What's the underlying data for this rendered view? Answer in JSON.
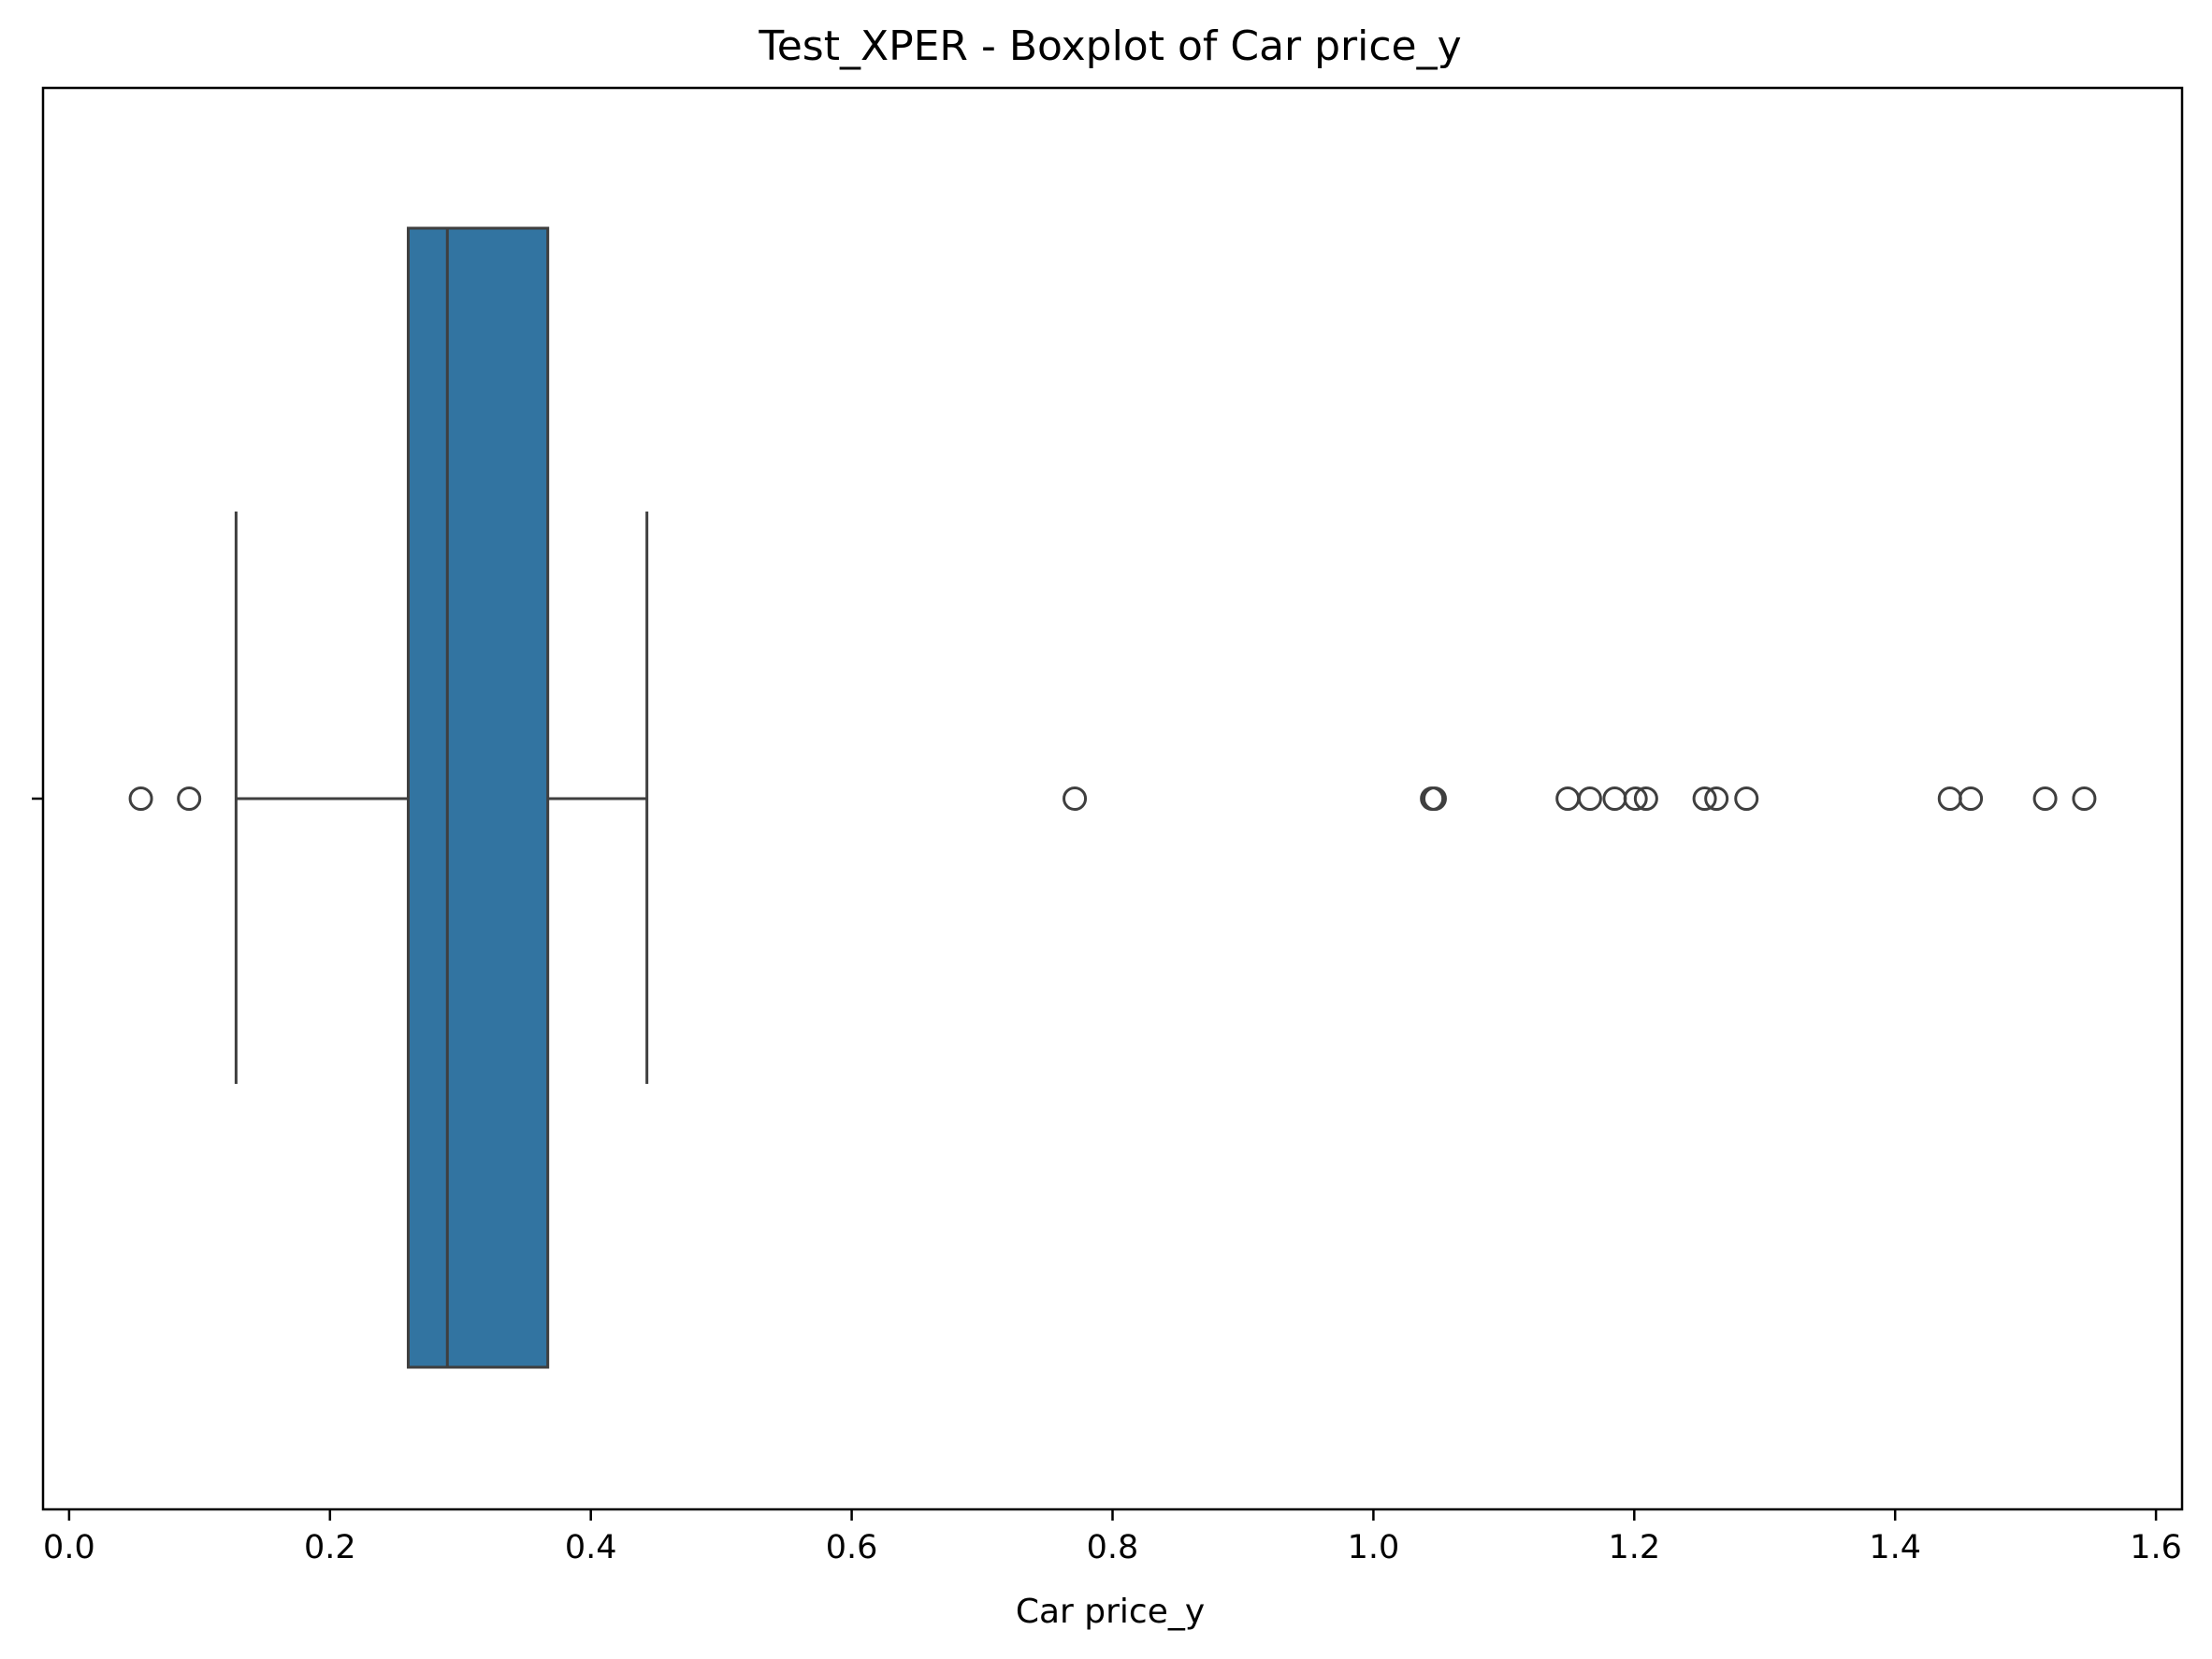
{
  "chart_data": {
    "type": "boxplot",
    "title": "Test_XPER - Boxplot of Car price_y",
    "xlabel": "Car price_y",
    "ylabel": "",
    "orientation": "horizontal",
    "xlim": [
      -0.02,
      1.62
    ],
    "x_ticks": [
      0.0,
      0.2,
      0.4,
      0.6,
      0.8,
      1.0,
      1.2,
      1.4,
      1.6
    ],
    "x_tick_labels": [
      "0.0",
      "0.2",
      "0.4",
      "0.6",
      "0.8",
      "1.0",
      "1.2",
      "1.4",
      "1.6"
    ],
    "grid": false,
    "box": {
      "whisker_low": 0.128,
      "q1": 0.26,
      "median": 0.29,
      "q3": 0.367,
      "whisker_high": 0.443,
      "color": "#3274a1",
      "edge_color": "#3f3f3f"
    },
    "outliers": [
      0.055,
      0.092,
      0.771,
      1.045,
      1.047,
      1.149,
      1.166,
      1.185,
      1.201,
      1.209,
      1.254,
      1.263,
      1.286,
      1.442,
      1.458,
      1.515,
      1.545
    ]
  }
}
